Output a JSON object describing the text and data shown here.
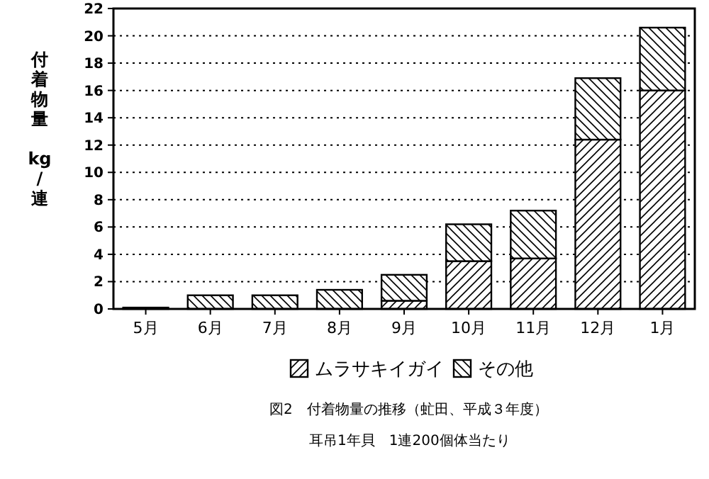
{
  "chart_data": {
    "type": "bar",
    "stacked": true,
    "ylabel": "付着物量 kg/連",
    "categories": [
      "5月",
      "6月",
      "7月",
      "8月",
      "9月",
      "10月",
      "11月",
      "12月",
      "1月"
    ],
    "series": [
      {
        "name": "ムラサキイガイ",
        "color": "#000000",
        "values": [
          0,
          0,
          0,
          0,
          0.6,
          3.5,
          3.7,
          12.4,
          16.0
        ]
      },
      {
        "name": "その他",
        "color": "#000000",
        "values": [
          0.1,
          1.0,
          1.0,
          1.4,
          1.9,
          2.7,
          3.5,
          4.5,
          4.6
        ]
      }
    ],
    "ylim": [
      0,
      22
    ],
    "yticks": [
      0,
      2,
      4,
      6,
      8,
      10,
      12,
      14,
      16,
      18,
      20,
      22
    ],
    "grid": "y",
    "legend": "bottom",
    "annotations": [
      "図2　付着物量の推移（虻田、平成３年度）",
      "耳吊1年貝　1連200個体当たり"
    ]
  }
}
